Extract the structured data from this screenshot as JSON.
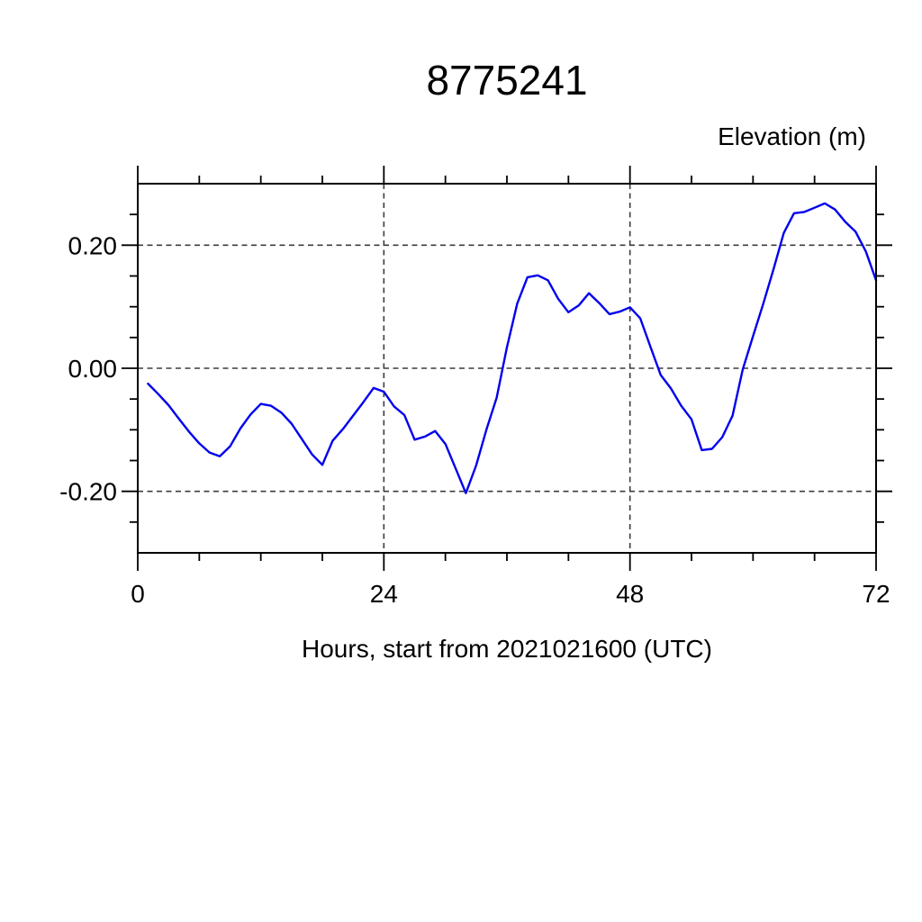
{
  "title": "8775241",
  "y_axis_label": "Elevation (m)",
  "x_axis_label": "Hours, start from 2021021600 (UTC)",
  "colors": {
    "line": "#0000ee",
    "frame": "#000000",
    "grid": "#3c3c3c",
    "text": "#000000",
    "background": "#ffffff"
  },
  "chart_data": {
    "type": "line",
    "title": "8775241",
    "xlabel": "Hours, start from 2021021600 (UTC)",
    "ylabel": "Elevation (m)",
    "xlim": [
      0,
      72
    ],
    "ylim": [
      -0.3,
      0.3
    ],
    "x_major_ticks": [
      0,
      24,
      48,
      72
    ],
    "x_tick_labels": [
      "0",
      "24",
      "48",
      "72"
    ],
    "x_minor_tick_interval": 6,
    "y_major_ticks": [
      0.2,
      0.0,
      -0.2
    ],
    "y_tick_labels": [
      "0.20",
      "0.00",
      "-0.20"
    ],
    "y_minor_tick_interval": 0.05,
    "grid": "dashed lines at major ticks (horizontal at -0.20, 0.00, 0.20; vertical at 24 and 48)",
    "legend": "none",
    "series": [
      {
        "name": "elevation",
        "x": [
          1,
          2,
          3,
          4,
          5,
          6,
          7,
          8,
          9,
          10,
          11,
          12,
          13,
          14,
          15,
          16,
          17,
          18,
          19,
          20,
          21,
          22,
          23,
          24,
          25,
          26,
          27,
          28,
          29,
          30,
          31,
          32,
          33,
          34,
          35,
          36,
          37,
          38,
          39,
          40,
          41,
          42,
          43,
          44,
          45,
          46,
          47,
          48,
          49,
          50,
          51,
          52,
          53,
          54,
          55,
          56,
          57,
          58,
          59,
          60,
          61,
          62,
          63,
          64,
          65,
          66,
          67,
          68,
          69,
          70,
          71,
          72
        ],
        "values": [
          -0.025,
          -0.042,
          -0.06,
          -0.082,
          -0.103,
          -0.122,
          -0.137,
          -0.143,
          -0.127,
          -0.098,
          -0.075,
          -0.058,
          -0.061,
          -0.072,
          -0.09,
          -0.115,
          -0.14,
          -0.157,
          -0.118,
          -0.099,
          -0.077,
          -0.055,
          -0.032,
          -0.038,
          -0.062,
          -0.076,
          -0.116,
          -0.111,
          -0.102,
          -0.123,
          -0.163,
          -0.203,
          -0.158,
          -0.1,
          -0.048,
          0.034,
          0.105,
          0.148,
          0.151,
          0.143,
          0.113,
          0.091,
          0.102,
          0.122,
          0.106,
          0.088,
          0.092,
          0.099,
          0.081,
          0.035,
          -0.011,
          -0.033,
          -0.061,
          -0.083,
          -0.133,
          -0.131,
          -0.112,
          -0.077,
          -0.002,
          0.052,
          0.105,
          0.161,
          0.22,
          0.252,
          0.254,
          0.261,
          0.268,
          0.258,
          0.238,
          0.222,
          0.19,
          0.143
        ]
      }
    ]
  }
}
